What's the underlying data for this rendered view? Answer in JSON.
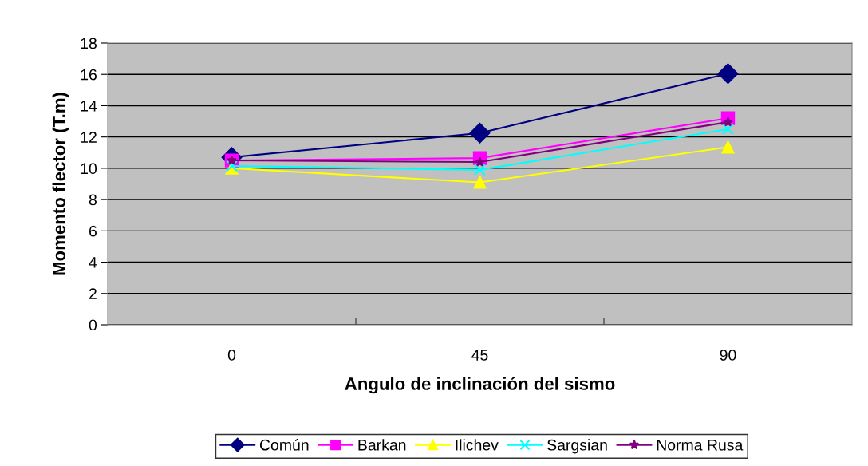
{
  "chart_data": {
    "type": "line",
    "xlabel": "Angulo de inclinación del sismo",
    "ylabel": "Momento flector (T.m)",
    "categories": [
      "0",
      "45",
      "90"
    ],
    "series": [
      {
        "name": "Común",
        "color": "#000080",
        "marker": "diamond",
        "values": [
          10.7,
          12.25,
          16.05
        ]
      },
      {
        "name": "Barkan",
        "color": "#ff00ff",
        "marker": "square",
        "values": [
          10.5,
          10.65,
          13.2
        ]
      },
      {
        "name": "Ilichev",
        "color": "#ffff00",
        "marker": "triangle",
        "values": [
          10.0,
          9.1,
          11.35
        ]
      },
      {
        "name": "Sargsian",
        "color": "#00ffff",
        "marker": "cross",
        "values": [
          10.15,
          9.9,
          12.5
        ]
      },
      {
        "name": "Norma Rusa",
        "color": "#800080",
        "marker": "star",
        "values": [
          10.5,
          10.4,
          12.95
        ]
      }
    ],
    "ylim": [
      0,
      18
    ],
    "yticks": [
      0,
      2,
      4,
      6,
      8,
      10,
      12,
      14,
      16,
      18
    ],
    "grid": "y",
    "legend": "bottom",
    "line_style": "solid"
  }
}
